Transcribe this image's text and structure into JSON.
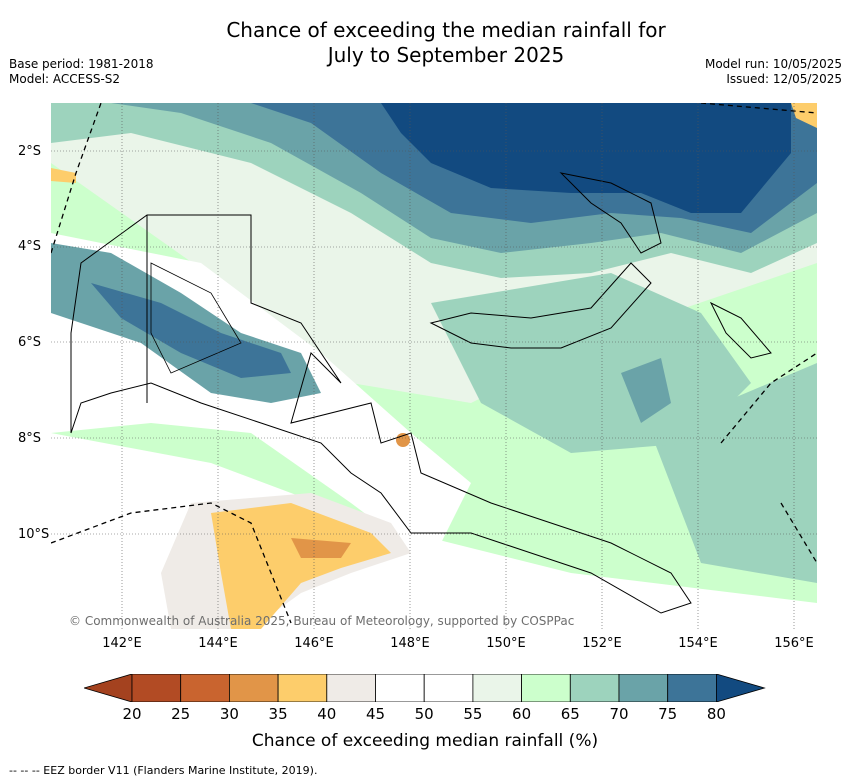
{
  "header": {
    "title_line1": "Chance of exceeding the median rainfall for",
    "title_line2": "July to September 2025",
    "base_period": "Base period: 1981-2018",
    "model": "Model: ACCESS-S2",
    "model_run": "Model run: 10/05/2025",
    "issued": "Issued: 12/05/2025"
  },
  "map": {
    "latitude_labels": [
      "2°S",
      "4°S",
      "6°S",
      "8°S",
      "10°S"
    ],
    "longitude_labels": [
      "142°E",
      "144°E",
      "146°E",
      "148°E",
      "150°E",
      "152°E",
      "154°E",
      "156°E"
    ],
    "copyright": "© Commonwealth of Australia 2025, Bureau of Meteorology, supported by COSPPac"
  },
  "colorbar": {
    "tick_labels": [
      "20",
      "25",
      "30",
      "35",
      "40",
      "45",
      "50",
      "55",
      "60",
      "65",
      "70",
      "75",
      "80"
    ],
    "colors": [
      "#a4421f",
      "#b24b24",
      "#c9642f",
      "#e19548",
      "#fdcd6b",
      "#efebe7",
      "#ffffff",
      "#ffffff",
      "#eaf5e9",
      "#ccffcc",
      "#9dd3bd",
      "#6aa3a8",
      "#3d7498",
      "#124a80"
    ],
    "label": "Chance of exceeding median rainfall (%)"
  },
  "footer": {
    "eez_note": "--  --  -- EEZ border V11 (Flanders Marine Institute, 2019)."
  }
}
